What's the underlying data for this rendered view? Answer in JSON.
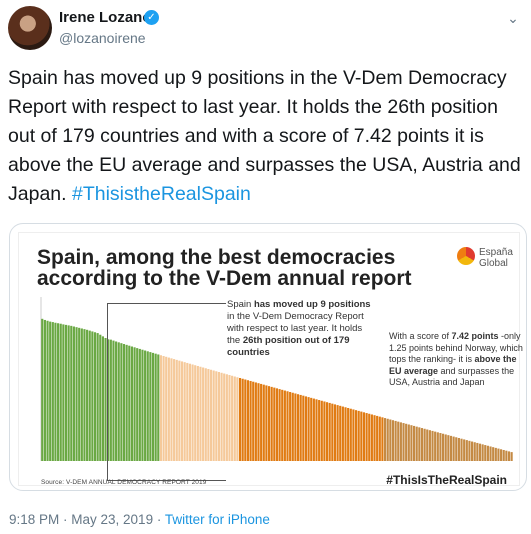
{
  "author": {
    "name": "Irene Lozano",
    "handle": "@lozanoirene",
    "verified_icon": "verified-badge-icon"
  },
  "tweet": {
    "text": "Spain has moved up 9 positions in the V-Dem Democracy Report with respect to last year. It holds the 26th position out of 179 countries and with a score of 7.42 points it is above the EU average and surpasses the USA, Austria and Japan.",
    "hashtag": "#ThisistheRealSpain"
  },
  "image": {
    "title_line1": "Spain, among the best democracies",
    "title_line2": "according to the V-Dem annual report",
    "logo_line1": "España",
    "logo_line2": "Global",
    "callout1_parts": {
      "a": "Spain ",
      "b": "has moved up 9 positions",
      "c": " in the V-Dem Democracy Report with respect to last year. It holds the ",
      "d": "26th position out of 179 countries"
    },
    "callout2_parts": {
      "a": "With a score of ",
      "b": "7.42 points",
      "c": " -only 1.25 points behind Norway, which tops the ranking- it is ",
      "d": "above the EU average",
      "e": " and surpasses the USA, Austria and Japan"
    },
    "source": "Source: V-DEM ANNUAL DEMOCRACY REPORT 2019",
    "hashtag": "#ThisIsTheRealSpain",
    "colors": {
      "green": "#6aa843",
      "peach": "#f5c99a",
      "orange": "#e07b12",
      "tan": "#c48a44"
    }
  },
  "meta": {
    "time": "9:18 PM · May 23, 2019 · ",
    "source": "Twitter for iPhone"
  },
  "chart_data": {
    "type": "bar",
    "ylim": [
      0,
      10
    ],
    "count": 179,
    "highlight_rank": 26,
    "values": [
      8.67,
      8.6,
      8.55,
      8.5,
      8.47,
      8.43,
      8.4,
      8.37,
      8.33,
      8.3,
      8.27,
      8.24,
      8.2,
      8.16,
      8.12,
      8.08,
      8.04,
      8.0,
      7.95,
      7.9,
      7.85,
      7.8,
      7.7,
      7.6,
      7.5,
      7.42
    ]
  }
}
